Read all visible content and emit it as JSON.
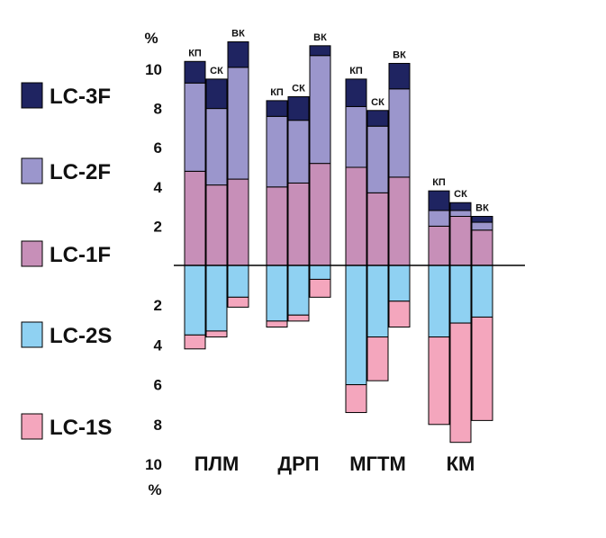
{
  "chart_data": {
    "type": "bar",
    "subtype": "stacked-diverging",
    "unit": "%",
    "ylim_positive": [
      0,
      11.5
    ],
    "ylim_negative": [
      0,
      10
    ],
    "positive_ticks": [
      "2",
      "4",
      "6",
      "8",
      "10"
    ],
    "negative_ticks": [
      "2",
      "4",
      "6",
      "8",
      "10"
    ],
    "positive_series": [
      "LC-1F",
      "LC-2F",
      "LC-3F"
    ],
    "negative_series": [
      "LC-2S",
      "LC-1S"
    ],
    "legend": [
      {
        "name": "LC-3F",
        "color": "#1f2461"
      },
      {
        "name": "LC-2F",
        "color": "#9b96cc"
      },
      {
        "name": "LC-1F",
        "color": "#c78fb8"
      },
      {
        "name": "LC-2S",
        "color": "#8fd1f2"
      },
      {
        "name": "LC-1S",
        "color": "#f4a6bd"
      }
    ],
    "groups": [
      {
        "name": "ПЛМ",
        "bars": [
          {
            "label": "КП",
            "LC-1F": 4.8,
            "LC-2F": 4.5,
            "LC-3F": 1.1,
            "LC-2S": 3.5,
            "LC-1S": 0.7
          },
          {
            "label": "СК",
            "LC-1F": 4.1,
            "LC-2F": 3.9,
            "LC-3F": 1.5,
            "LC-2S": 3.3,
            "LC-1S": 0.3
          },
          {
            "label": "ВК",
            "LC-1F": 4.4,
            "LC-2F": 5.7,
            "LC-3F": 1.3,
            "LC-2S": 1.6,
            "LC-1S": 0.5
          }
        ]
      },
      {
        "name": "ДРП",
        "bars": [
          {
            "label": "КП",
            "LC-1F": 4.0,
            "LC-2F": 3.6,
            "LC-3F": 0.8,
            "LC-2S": 2.8,
            "LC-1S": 0.3
          },
          {
            "label": "СК",
            "LC-1F": 4.2,
            "LC-2F": 3.2,
            "LC-3F": 1.2,
            "LC-2S": 2.5,
            "LC-1S": 0.3
          },
          {
            "label": "ВК",
            "LC-1F": 5.2,
            "LC-2F": 5.5,
            "LC-3F": 0.5,
            "LC-2S": 0.7,
            "LC-1S": 0.9
          }
        ]
      },
      {
        "name": "МГТМ",
        "bars": [
          {
            "label": "КП",
            "LC-1F": 5.0,
            "LC-2F": 3.1,
            "LC-3F": 1.4,
            "LC-2S": 6.0,
            "LC-1S": 1.4
          },
          {
            "label": "СК",
            "LC-1F": 3.7,
            "LC-2F": 3.4,
            "LC-3F": 0.8,
            "LC-2S": 3.6,
            "LC-1S": 2.2
          },
          {
            "label": "ВК",
            "LC-1F": 4.5,
            "LC-2F": 4.5,
            "LC-3F": 1.3,
            "LC-2S": 1.8,
            "LC-1S": 1.3
          }
        ]
      },
      {
        "name": "КМ",
        "bars": [
          {
            "label": "КП",
            "LC-1F": 2.0,
            "LC-2F": 0.8,
            "LC-3F": 1.0,
            "LC-2S": 3.6,
            "LC-1S": 4.4
          },
          {
            "label": "СК",
            "LC-1F": 2.5,
            "LC-2F": 0.3,
            "LC-3F": 0.4,
            "LC-2S": 2.9,
            "LC-1S": 6.0
          },
          {
            "label": "ВК",
            "LC-1F": 1.8,
            "LC-2F": 0.4,
            "LC-3F": 0.3,
            "LC-2S": 2.6,
            "LC-1S": 5.2
          }
        ]
      }
    ]
  }
}
